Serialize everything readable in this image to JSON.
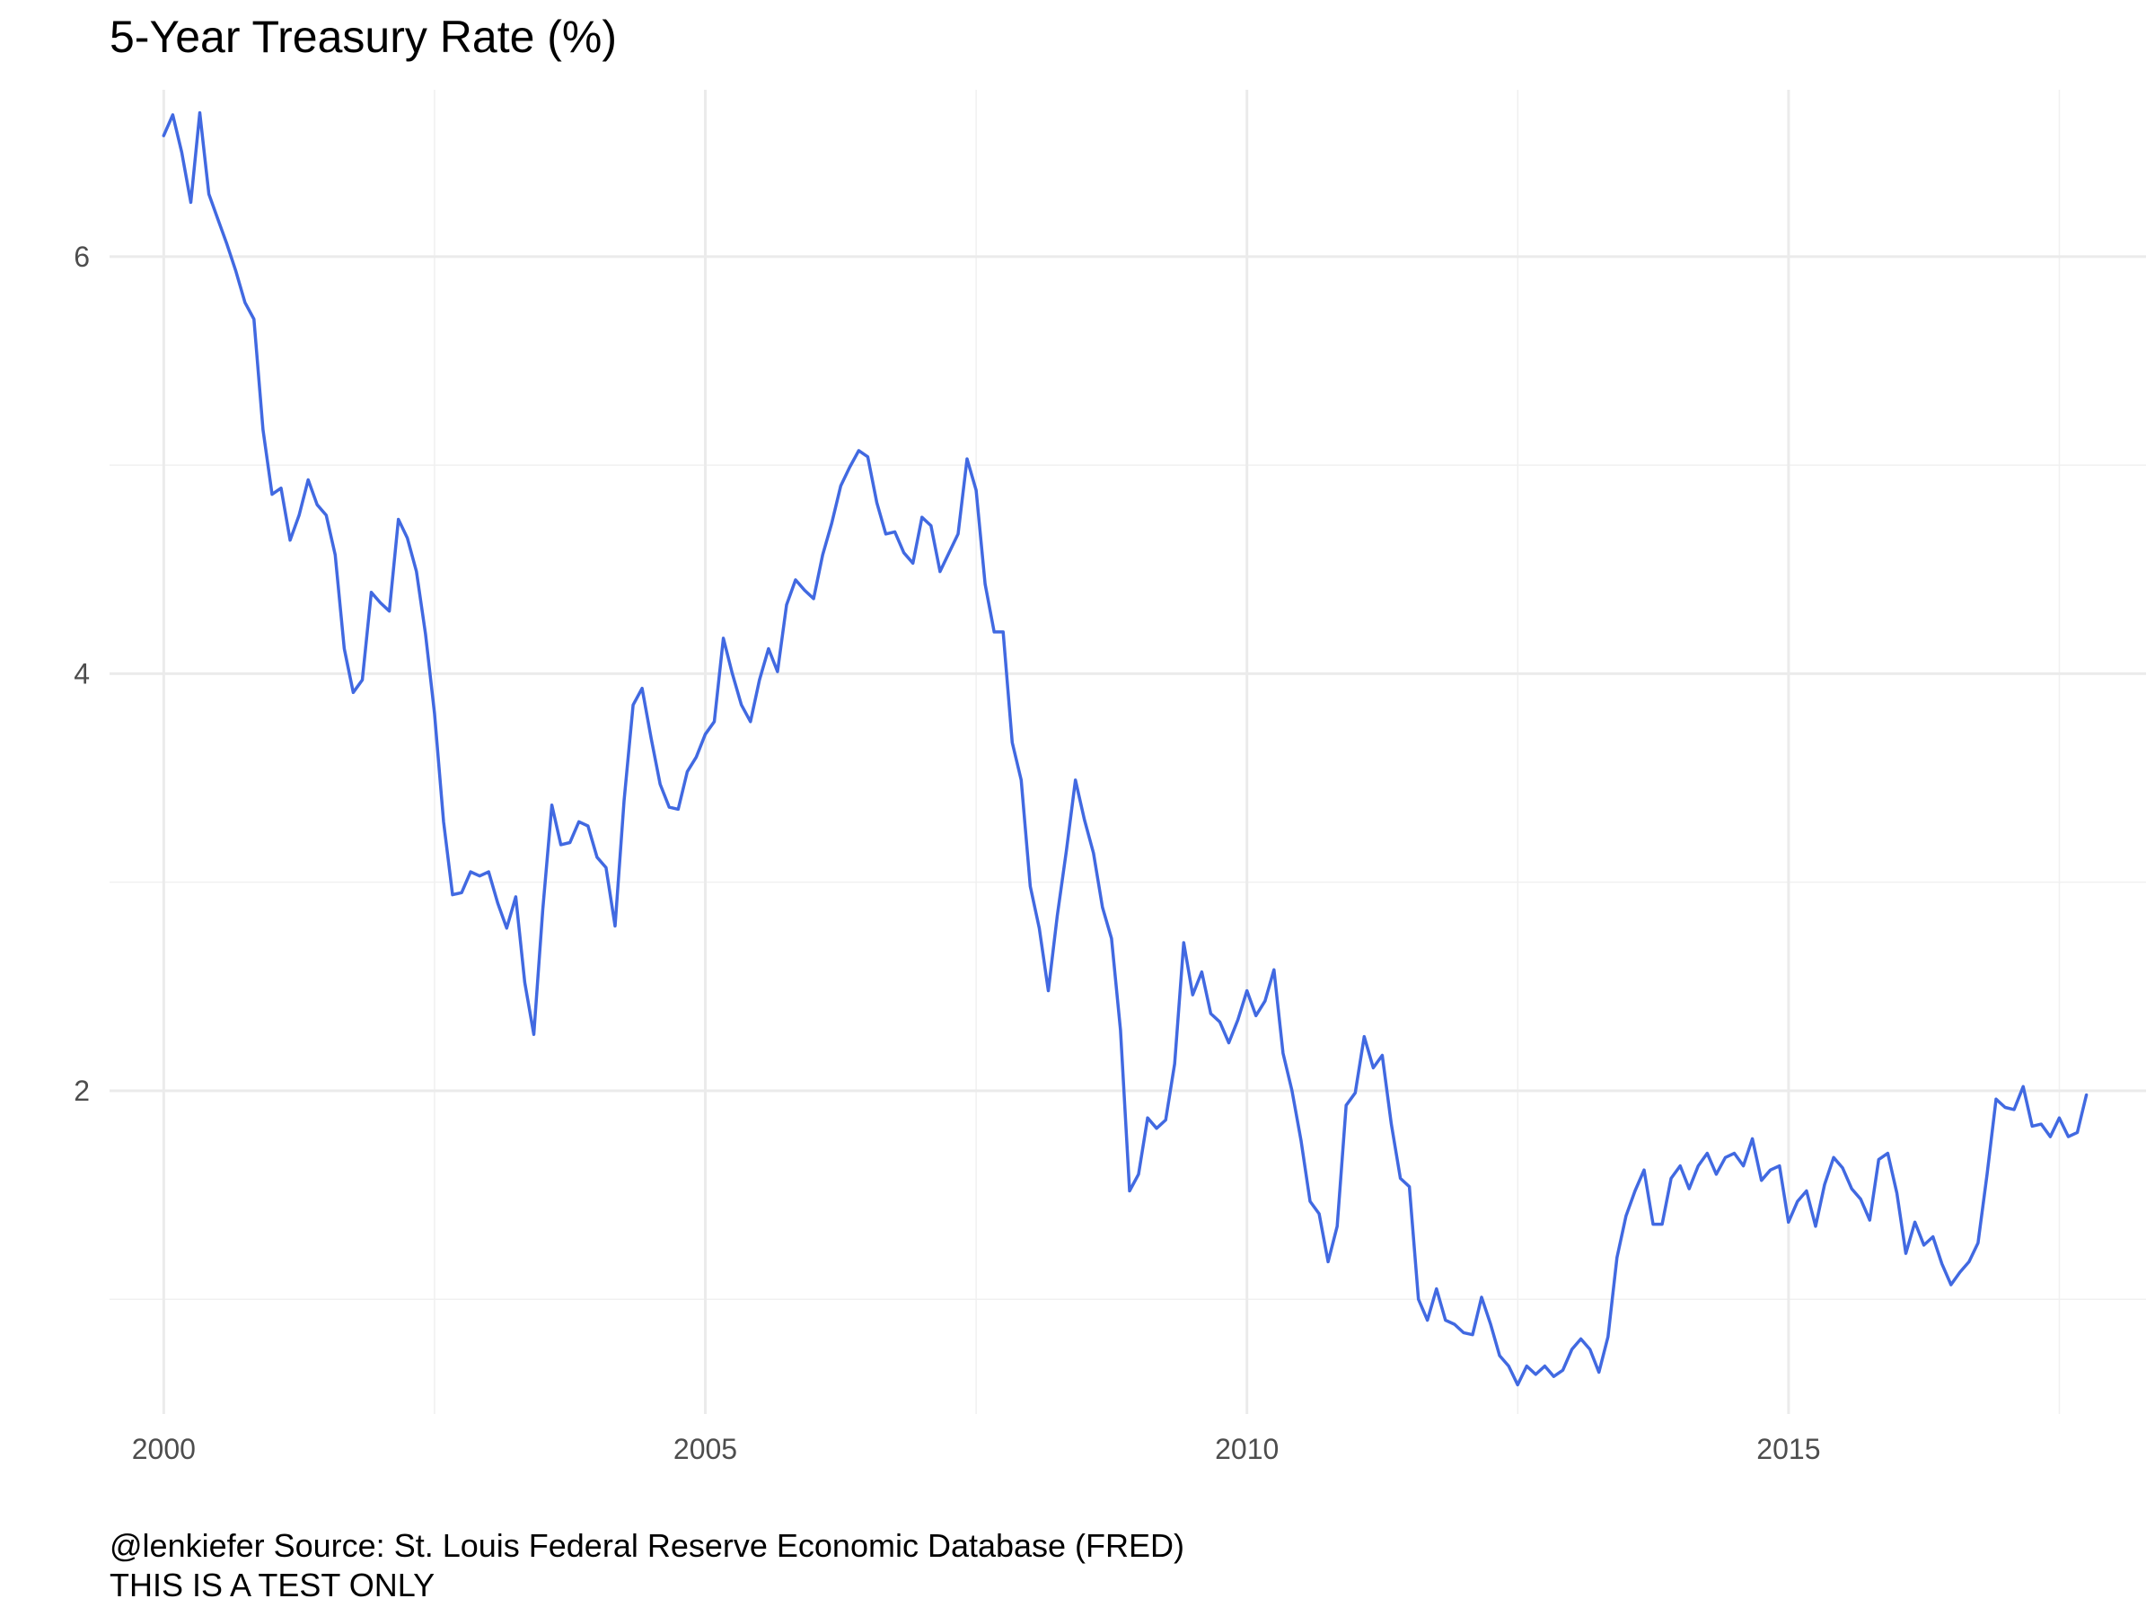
{
  "title": "5-Year Treasury Rate (%)",
  "caption": {
    "line1": "@lenkiefer Source: St. Louis Federal Reserve Economic Database (FRED)",
    "line2": "THIS IS A TEST ONLY"
  },
  "chart_data": {
    "type": "line",
    "title": "5-Year Treasury Rate (%)",
    "xlabel": "",
    "ylabel": "",
    "xlim": [
      1999.5,
      2018.3
    ],
    "ylim": [
      0.45,
      6.8
    ],
    "x_ticks": [
      2000,
      2005,
      2010,
      2015
    ],
    "y_ticks": [
      2,
      4,
      6
    ],
    "x_minor_ticks": [
      2002.5,
      2007.5,
      2012.5,
      2017.5
    ],
    "y_minor_ticks": [
      1,
      3,
      5
    ],
    "grid": true,
    "line_color": "#4169E1",
    "series": [
      {
        "name": "",
        "x_start": 2000.0,
        "x_step": 0.08333,
        "values": [
          6.58,
          6.68,
          6.5,
          6.26,
          6.69,
          6.3,
          6.18,
          6.06,
          5.93,
          5.78,
          5.7,
          5.17,
          4.86,
          4.89,
          4.64,
          4.76,
          4.93,
          4.81,
          4.76,
          4.57,
          4.12,
          3.91,
          3.97,
          4.39,
          4.34,
          4.3,
          4.74,
          4.65,
          4.49,
          4.19,
          3.81,
          3.29,
          2.94,
          2.95,
          3.05,
          3.03,
          3.05,
          2.9,
          2.78,
          2.93,
          2.52,
          2.27,
          2.87,
          3.37,
          3.18,
          3.19,
          3.29,
          3.27,
          3.12,
          3.07,
          2.79,
          3.39,
          3.85,
          3.93,
          3.69,
          3.47,
          3.36,
          3.35,
          3.53,
          3.6,
          3.71,
          3.77,
          4.17,
          4.0,
          3.85,
          3.77,
          3.97,
          4.12,
          4.01,
          4.33,
          4.45,
          4.4,
          4.36,
          4.57,
          4.72,
          4.9,
          4.99,
          5.07,
          5.04,
          4.82,
          4.67,
          4.68,
          4.58,
          4.53,
          4.75,
          4.71,
          4.49,
          4.58,
          4.67,
          5.03,
          4.88,
          4.43,
          4.2,
          4.2,
          3.67,
          3.49,
          2.98,
          2.78,
          2.48,
          2.84,
          3.15,
          3.49,
          3.3,
          3.14,
          2.88,
          2.73,
          2.29,
          1.52,
          1.6,
          1.87,
          1.82,
          1.86,
          2.13,
          2.71,
          2.46,
          2.57,
          2.37,
          2.33,
          2.23,
          2.34,
          2.48,
          2.36,
          2.43,
          2.58,
          2.18,
          2.0,
          1.76,
          1.47,
          1.41,
          1.18,
          1.35,
          1.93,
          1.99,
          2.26,
          2.11,
          2.17,
          1.84,
          1.58,
          1.54,
          1.0,
          0.9,
          1.05,
          0.9,
          0.88,
          0.84,
          0.83,
          1.01,
          0.88,
          0.73,
          0.68,
          0.59,
          0.68,
          0.64,
          0.68,
          0.63,
          0.66,
          0.76,
          0.81,
          0.76,
          0.65,
          0.82,
          1.2,
          1.4,
          1.52,
          1.62,
          1.36,
          1.36,
          1.58,
          1.64,
          1.53,
          1.64,
          1.7,
          1.6,
          1.68,
          1.7,
          1.64,
          1.77,
          1.57,
          1.62,
          1.64,
          1.37,
          1.47,
          1.52,
          1.35,
          1.55,
          1.68,
          1.63,
          1.53,
          1.48,
          1.38,
          1.67,
          1.7,
          1.51,
          1.22,
          1.37,
          1.26,
          1.3,
          1.17,
          1.07,
          1.13,
          1.18,
          1.27,
          1.6,
          1.96,
          1.92,
          1.91,
          2.02,
          1.83,
          1.84,
          1.78,
          1.87,
          1.78,
          1.8,
          1.98
        ]
      }
    ]
  }
}
